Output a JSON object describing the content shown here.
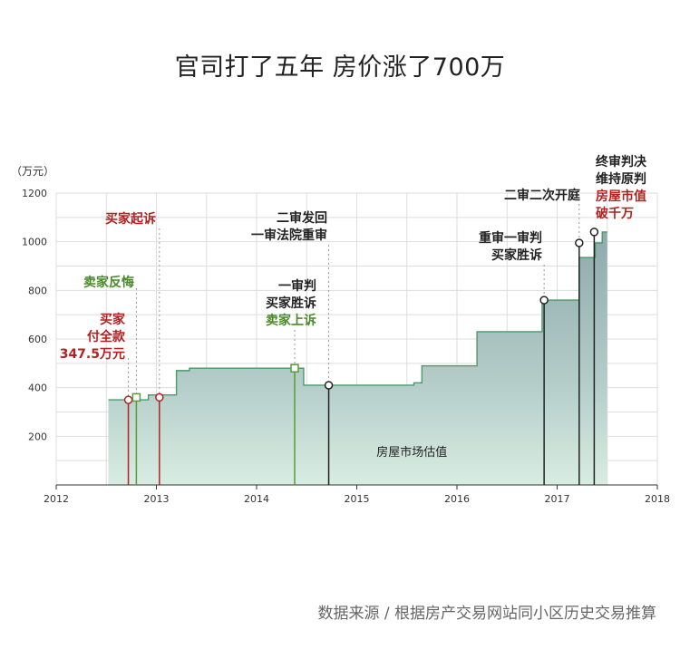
{
  "chart_data": {
    "type": "area",
    "title": "官司打了五年 房价涨了700万",
    "ylabel": "（万元）",
    "xlabel": "",
    "xlim": [
      2012,
      2018
    ],
    "ylim": [
      0,
      1200
    ],
    "x_ticks": [
      2012,
      2013,
      2014,
      2015,
      2016,
      2017,
      2018
    ],
    "y_ticks": [
      200,
      400,
      600,
      800,
      1000,
      1200
    ],
    "grid": true,
    "series": [
      {
        "name": "房屋市场估值",
        "step_x": [
          2012.52,
          2012.92,
          2013.2,
          2013.33,
          2014.4,
          2014.47,
          2015.37,
          2015.57,
          2015.65,
          2016.2,
          2016.85,
          2017.22,
          2017.38,
          2017.45
        ],
        "step_y": [
          350,
          370,
          470,
          480,
          480,
          410,
          410,
          420,
          490,
          630,
          760,
          935,
          995,
          1040
        ]
      }
    ],
    "events": [
      {
        "id": "buyer-paid",
        "x": 2012.72,
        "y": 350,
        "marker": "circle",
        "color": "#b22222",
        "lines": [
          {
            "text": "买家",
            "color": "#b22222"
          },
          {
            "text": "付全款",
            "color": "#b22222"
          },
          {
            "text": "347.5万元",
            "color": "#b22222"
          }
        ]
      },
      {
        "id": "seller-regret",
        "x": 2012.8,
        "y": 360,
        "marker": "square",
        "color": "#5a9a3a",
        "lines": [
          {
            "text": "卖家反悔",
            "color": "#4a8a2a"
          }
        ]
      },
      {
        "id": "buyer-sues",
        "x": 2013.03,
        "y": 360,
        "marker": "circle",
        "color": "#b22222",
        "lines": [
          {
            "text": "买家起诉",
            "color": "#b22222"
          }
        ]
      },
      {
        "id": "first-trial",
        "x": 2014.38,
        "y": 480,
        "marker": "square",
        "color": "#5a9a3a",
        "lines": [
          {
            "text": "一审判",
            "color": "#222222"
          },
          {
            "text": "买家胜诉",
            "color": "#222222"
          },
          {
            "text": "卖家上诉",
            "color": "#4a8a2a"
          }
        ]
      },
      {
        "id": "remanded",
        "x": 2014.72,
        "y": 410,
        "marker": "circle",
        "color": "#222222",
        "lines": [
          {
            "text": "二审发回",
            "color": "#222222"
          },
          {
            "text": "一审法院重审",
            "color": "#222222"
          }
        ]
      },
      {
        "id": "retrial",
        "x": 2016.87,
        "y": 760,
        "marker": "circle",
        "color": "#222222",
        "lines": [
          {
            "text": "重审一审判",
            "color": "#222222"
          },
          {
            "text": "买家胜诉",
            "color": "#222222"
          }
        ]
      },
      {
        "id": "second-hearing",
        "x": 2017.22,
        "y": 995,
        "marker": "circle",
        "color": "#222222",
        "lines": [
          {
            "text": "二审二次开庭",
            "color": "#222222"
          }
        ]
      },
      {
        "id": "final-ruling",
        "x": 2017.37,
        "y": 1040,
        "marker": "circle",
        "color": "#222222",
        "lines": [
          {
            "text": "终审判决",
            "color": "#222222"
          },
          {
            "text": "维持原判",
            "color": "#222222"
          },
          {
            "text": "房屋市值",
            "color": "#b22222"
          },
          {
            "text": "破千万",
            "color": "#b22222"
          }
        ]
      }
    ]
  },
  "source_note": "数据来源 / 根据房产交易网站同小区历史交易推算"
}
